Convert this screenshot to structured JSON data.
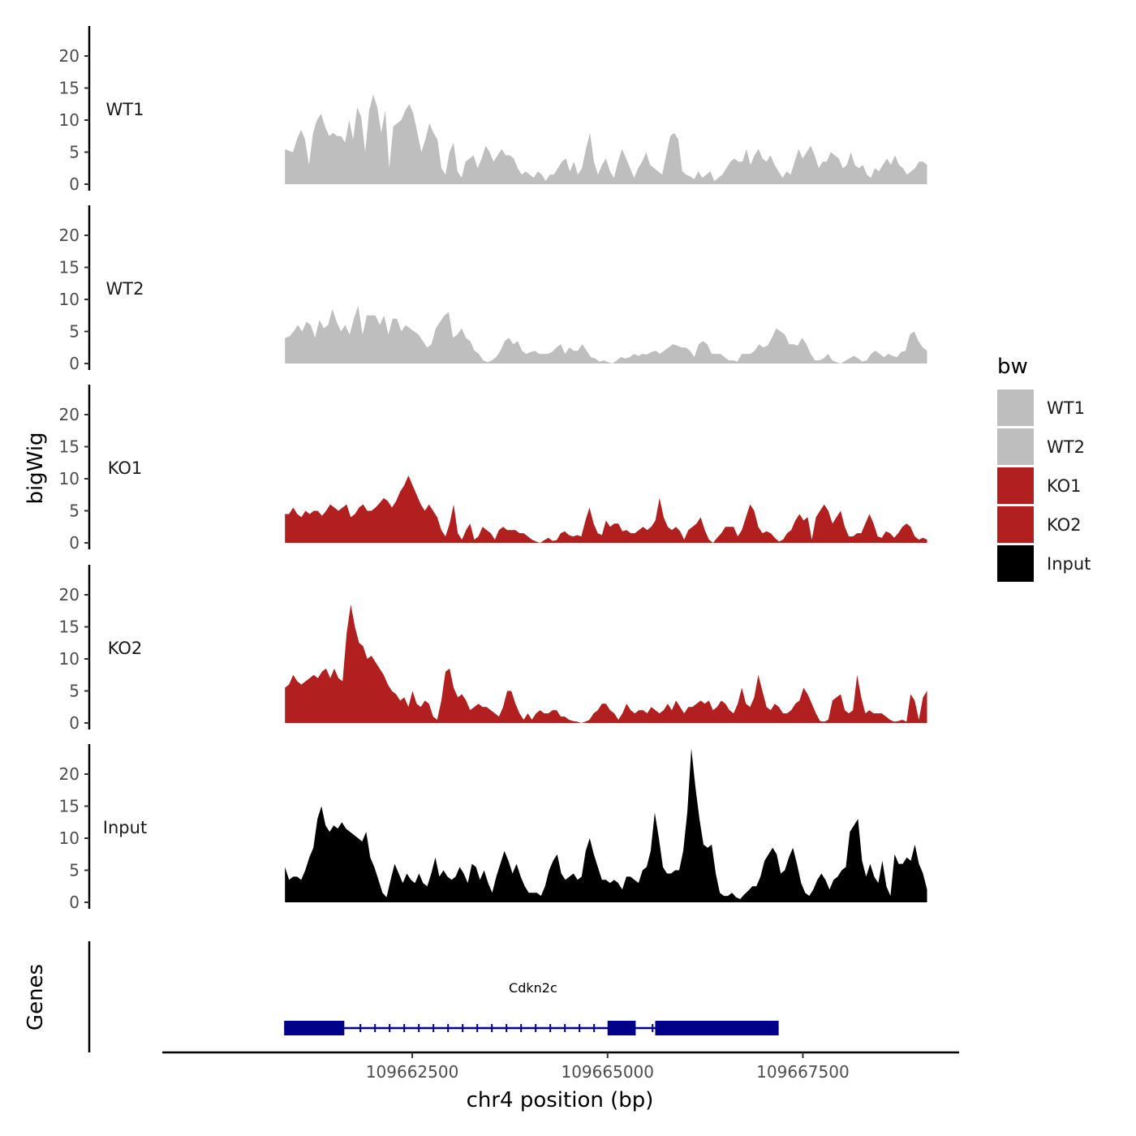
{
  "chart_data": {
    "type": "area",
    "ylabel_tracks": "bigWig",
    "ylabel_genes": "Genes",
    "xlabel": "chr4 position (bp)",
    "chromosome": "chr4",
    "xlim": [
      109659300,
      109669500
    ],
    "data_range": [
      109660870,
      109669090
    ],
    "ylim": [
      0,
      25
    ],
    "yticks": [
      0,
      5,
      10,
      15,
      20
    ],
    "xticks": [
      109662500,
      109665000,
      109667500
    ],
    "xtick_labels": [
      "109662500",
      "109665000",
      "109667500"
    ],
    "legend": {
      "title": "bw",
      "position": "right",
      "entries": [
        {
          "label": "WT1",
          "color": "#bebebe"
        },
        {
          "label": "WT2",
          "color": "#bebebe"
        },
        {
          "label": "KO1",
          "color": "#b21f1f"
        },
        {
          "label": "KO2",
          "color": "#b21f1f"
        },
        {
          "label": "Input",
          "color": "#000000"
        }
      ]
    },
    "series": [
      {
        "name": "WT1",
        "color": "#bebebe",
        "values": [
          5.5,
          5.2,
          5,
          7,
          8.5,
          7,
          3,
          8,
          10,
          11,
          9,
          7.5,
          8,
          7.5,
          7.5,
          6.5,
          10,
          7,
          12,
          10.5,
          5,
          11.5,
          14,
          12,
          8,
          11.5,
          2.5,
          9,
          9.5,
          10,
          11.5,
          12.5,
          11,
          8,
          5,
          7,
          9.5,
          8,
          7,
          2.5,
          1.5,
          5,
          6.5,
          2,
          1,
          3.5,
          4,
          4.5,
          2.5,
          4,
          6,
          5,
          3.5,
          4.5,
          5.5,
          4.5,
          4.5,
          4,
          2.5,
          1.5,
          2,
          1.5,
          1,
          2,
          1.5,
          0.5,
          1.5,
          1.5,
          2.5,
          3.5,
          4,
          2,
          3.5,
          1.5,
          2.5,
          5.5,
          8,
          3.5,
          1.5,
          3,
          4,
          2,
          1,
          3.5,
          5.5,
          4,
          2.5,
          1,
          2.5,
          3.5,
          5,
          3,
          2.5,
          2,
          1.5,
          4.5,
          7.5,
          8,
          7,
          2,
          1.5,
          1.2,
          0.8,
          2,
          1,
          1.5,
          2,
          0.5,
          1,
          1.5,
          2.5,
          3.5,
          4,
          3.5,
          3.5,
          5.5,
          3,
          4.5,
          5.5,
          4,
          3.5,
          4.5,
          3,
          2,
          1,
          2,
          1.5,
          3.5,
          5.5,
          4,
          5,
          6,
          4.5,
          2.5,
          3.5,
          3.5,
          5,
          4.5,
          4,
          2.5,
          3,
          5,
          3,
          2.5,
          3,
          1.5,
          1,
          2.5,
          2,
          3,
          4,
          3,
          4.5,
          3,
          2.5,
          1.5,
          2,
          2.5,
          3.5,
          3.5,
          3
        ]
      },
      {
        "name": "WT2",
        "color": "#bebebe",
        "values": [
          4,
          4.2,
          5,
          6,
          5,
          6.5,
          6,
          4,
          6.8,
          5.5,
          6,
          8.5,
          6.5,
          5,
          6,
          4.5,
          7,
          9,
          4.5,
          7.5,
          7.5,
          7.5,
          6,
          7.5,
          4.5,
          7,
          7,
          5,
          6,
          5.5,
          5,
          4.5,
          3.5,
          2.5,
          3,
          5.5,
          6.5,
          7.5,
          8,
          4,
          4.5,
          5.5,
          4,
          3.5,
          2,
          1.5,
          0.5,
          0.2,
          0.5,
          1,
          2,
          3.5,
          4,
          3,
          3.5,
          2,
          1.5,
          1.8,
          2,
          1.5,
          1.5,
          1.5,
          1.8,
          2.5,
          3,
          1.5,
          2.5,
          2,
          2,
          3,
          2,
          1,
          0.8,
          0.3,
          0.5,
          0.2,
          0,
          0.5,
          1,
          0.8,
          1,
          1.5,
          1.2,
          1.5,
          1.4,
          1.8,
          2,
          1.5,
          2,
          2.5,
          3,
          2.8,
          2.5,
          2.5,
          2,
          1,
          3,
          3.5,
          3,
          1.5,
          1.5,
          1.5,
          1,
          0.5,
          0.5,
          0.3,
          1.5,
          1.5,
          1.5,
          2,
          3,
          2.5,
          2.8,
          4,
          5.5,
          5,
          4.5,
          3,
          3,
          2.8,
          4,
          3,
          1.5,
          0.5,
          0.5,
          0.8,
          1.5,
          0.5,
          0.2,
          0,
          0.4,
          0.8,
          1.2,
          0.8,
          0.3,
          0.5,
          1.5,
          2,
          1.5,
          1,
          1.5,
          1.2,
          1,
          1.8,
          2,
          4.5,
          5,
          3.5,
          2.5,
          2
        ]
      },
      {
        "name": "KO1",
        "color": "#b21f1f",
        "values": [
          4.5,
          4.5,
          5.5,
          4.5,
          4,
          5,
          4.5,
          5,
          5,
          4.2,
          5,
          6,
          5.5,
          5,
          5.5,
          6,
          4,
          4.5,
          5.5,
          6,
          5,
          5,
          5.5,
          6.2,
          7,
          6.5,
          5.5,
          6.5,
          8,
          9,
          10.5,
          9,
          7.5,
          6,
          5,
          6,
          5,
          4,
          2,
          1,
          3,
          6,
          1.5,
          0.5,
          2,
          3,
          0.5,
          1,
          2.5,
          2,
          1.5,
          0.5,
          2,
          2.5,
          2,
          2,
          2,
          1.5,
          1.5,
          1,
          0.5,
          0.2,
          0,
          0.4,
          0.8,
          0.3,
          0.4,
          1.5,
          1.8,
          1.2,
          1,
          1.2,
          1,
          3.5,
          5.5,
          3,
          1.5,
          1.2,
          3.5,
          2.5,
          3,
          3,
          1.8,
          2,
          1.5,
          1.5,
          2,
          2.5,
          2,
          2.5,
          3.5,
          7,
          4,
          2.5,
          2,
          2.5,
          1.8,
          0.5,
          2,
          2.5,
          3,
          4,
          2,
          0.5,
          0,
          0.8,
          1.5,
          2.5,
          2.5,
          2.5,
          1,
          2,
          4,
          6,
          5,
          2.5,
          1.5,
          1.8,
          1.5,
          0.8,
          0.2,
          0.5,
          1.5,
          2,
          3.5,
          4.5,
          3.5,
          4,
          0.5,
          4,
          5,
          6,
          5,
          3,
          4,
          5,
          2.5,
          1,
          1,
          1.5,
          1.5,
          3,
          4.5,
          3,
          1,
          0.8,
          1.8,
          1.5,
          0.8,
          1.5,
          2.5,
          3,
          2.5,
          1,
          0.5,
          0.8,
          0.5
        ]
      },
      {
        "name": "KO2",
        "color": "#b21f1f",
        "values": [
          5.5,
          6,
          7.5,
          6.5,
          6,
          6.5,
          7,
          7.5,
          7,
          8,
          8.5,
          7,
          8.5,
          7,
          6.5,
          14,
          18.5,
          15,
          12.5,
          12,
          10,
          10.5,
          9.5,
          8.5,
          7.5,
          6,
          5,
          4.5,
          3.5,
          4,
          2.5,
          5,
          3,
          2.5,
          3.5,
          3,
          1,
          0.5,
          3.5,
          8,
          8.5,
          5.5,
          4,
          4.5,
          3.5,
          2,
          2.5,
          3,
          2.5,
          2.5,
          2,
          1.5,
          1,
          2.5,
          5,
          5,
          3,
          1.5,
          0.5,
          1.5,
          0.5,
          1.5,
          2,
          1.5,
          1.5,
          2,
          2,
          1,
          1,
          0.5,
          0.3,
          0.2,
          0,
          0.2,
          0.5,
          1.5,
          2,
          3,
          3,
          2,
          1.5,
          0.5,
          1.5,
          3,
          2,
          1.5,
          2,
          2,
          1.5,
          2.5,
          2,
          1.5,
          2,
          3,
          2,
          3.5,
          2.5,
          1.5,
          2.5,
          2.5,
          3,
          3.5,
          3,
          3.5,
          2,
          2.5,
          3.5,
          3,
          2,
          1.5,
          3,
          5.5,
          3,
          2.5,
          4,
          7.5,
          5,
          2.5,
          2,
          3,
          2.5,
          1.5,
          1.5,
          2,
          3,
          3.5,
          5.5,
          4.5,
          3,
          1.5,
          0.3,
          0.2,
          0.5,
          3.5,
          4,
          4.5,
          2,
          1.5,
          2,
          7.5,
          4,
          1.5,
          2,
          1.5,
          1.5,
          1.5,
          1,
          0.5,
          0.2,
          0.3,
          0.5,
          0.2,
          4.5,
          3.5,
          0.5,
          4,
          5
        ]
      },
      {
        "name": "Input",
        "color": "#000000",
        "values": [
          5.5,
          3.5,
          4,
          4,
          3.5,
          5,
          7,
          8.5,
          13,
          15,
          12,
          11,
          12,
          11.5,
          12.5,
          11.5,
          11,
          10.5,
          10,
          9.5,
          11,
          7,
          5.5,
          3.5,
          1.5,
          0.8,
          3.5,
          6,
          4.5,
          3,
          4.5,
          3.5,
          3,
          4.5,
          3,
          2.5,
          4.5,
          7,
          4,
          5,
          4,
          3.5,
          4,
          5.5,
          4.5,
          3,
          6,
          5.5,
          3.5,
          5,
          3,
          1.5,
          4,
          6,
          8,
          6.5,
          4.5,
          6,
          4,
          2.5,
          1.5,
          1.5,
          1.5,
          1,
          2.5,
          5,
          6.5,
          7.5,
          4.5,
          3.5,
          4,
          4.5,
          3.5,
          4,
          8,
          10,
          7.5,
          5.5,
          3.5,
          3.5,
          3,
          3.5,
          3,
          2,
          4,
          4,
          3.5,
          3,
          5,
          5.5,
          8,
          14,
          10,
          5.5,
          4.5,
          4.5,
          5,
          5,
          8,
          14,
          24,
          18,
          13,
          9,
          8.5,
          9,
          4.5,
          1.5,
          1,
          1,
          1.5,
          0.8,
          0.5,
          1.2,
          1.8,
          2.5,
          2.5,
          4,
          6.5,
          7.5,
          8.5,
          7.5,
          4.5,
          5,
          7,
          8.5,
          6,
          3,
          1.5,
          1,
          2,
          3.5,
          4.5,
          3.5,
          2,
          3.5,
          4,
          5,
          5.5,
          11,
          12,
          13,
          6.5,
          4,
          6,
          4,
          3,
          6.5,
          2.5,
          1,
          7.5,
          6,
          6,
          7,
          6.5,
          9,
          6,
          4.5,
          2
        ]
      }
    ],
    "genes": [
      {
        "name": "Cdkn2c",
        "strand": "-",
        "exons": [
          {
            "start": 109660860,
            "end": 109661630
          },
          {
            "start": 109665000,
            "end": 109665360
          },
          {
            "start": 109665610,
            "end": 109667190
          }
        ]
      }
    ]
  }
}
